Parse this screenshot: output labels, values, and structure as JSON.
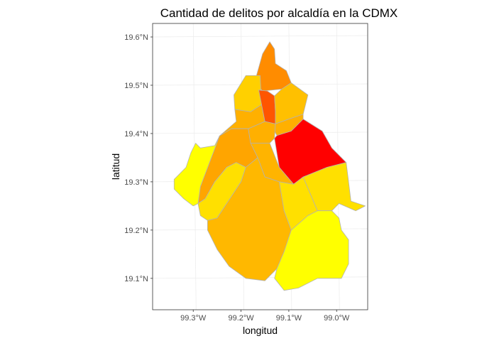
{
  "chart_data": {
    "type": "choropleth map",
    "title": "Cantidad de delitos por alcaldía en la CDMX",
    "xlabel": "longitud",
    "ylabel": "latitud",
    "x_ticks": [
      {
        "value": -99.3,
        "label": "99.3°W"
      },
      {
        "value": -99.2,
        "label": "99.2°W"
      },
      {
        "value": -99.1,
        "label": "99.1°W"
      },
      {
        "value": -99.0,
        "label": "99.0°W"
      }
    ],
    "y_ticks": [
      {
        "value": 19.1,
        "label": "19.1°N"
      },
      {
        "value": 19.2,
        "label": "19.2°N"
      },
      {
        "value": 19.3,
        "label": "19.3°N"
      },
      {
        "value": 19.4,
        "label": "19.4°N"
      },
      {
        "value": 19.5,
        "label": "19.5°N"
      },
      {
        "value": 19.6,
        "label": "19.6°N"
      }
    ],
    "xlim": [
      -99.385,
      -98.935
    ],
    "ylim": [
      19.035,
      19.628
    ],
    "grid": true,
    "legend": "none",
    "border_color": "#b3b3b3",
    "regions": [
      {
        "id": "north-tip",
        "fill": "#ff8c00",
        "coords": [
          [
            -99.17,
            19.512
          ],
          [
            -99.155,
            19.565
          ],
          [
            -99.14,
            19.59
          ],
          [
            -99.13,
            19.575
          ],
          [
            -99.128,
            19.545
          ],
          [
            -99.105,
            19.53
          ],
          [
            -99.095,
            19.505
          ],
          [
            -99.115,
            19.492
          ],
          [
            -99.155,
            19.488
          ],
          [
            -99.163,
            19.497
          ]
        ]
      },
      {
        "id": "north-west",
        "fill": "#ffd000",
        "coords": [
          [
            -99.215,
            19.48
          ],
          [
            -99.19,
            19.52
          ],
          [
            -99.16,
            19.52
          ],
          [
            -99.157,
            19.46
          ],
          [
            -99.18,
            19.445
          ],
          [
            -99.213,
            19.45
          ]
        ]
      },
      {
        "id": "west-central",
        "fill": "#ffb000",
        "coords": [
          [
            -99.213,
            19.45
          ],
          [
            -99.18,
            19.445
          ],
          [
            -99.157,
            19.46
          ],
          [
            -99.15,
            19.425
          ],
          [
            -99.185,
            19.41
          ],
          [
            -99.22,
            19.41
          ],
          [
            -99.245,
            19.395
          ],
          [
            -99.21,
            19.425
          ]
        ]
      },
      {
        "id": "center-north",
        "fill": "#ff5500",
        "coords": [
          [
            -99.157,
            19.46
          ],
          [
            -99.163,
            19.49
          ],
          [
            -99.145,
            19.488
          ],
          [
            -99.13,
            19.478
          ],
          [
            -99.128,
            19.445
          ],
          [
            -99.128,
            19.42
          ],
          [
            -99.15,
            19.425
          ]
        ]
      },
      {
        "id": "north-east",
        "fill": "#ffc000",
        "coords": [
          [
            -99.13,
            19.478
          ],
          [
            -99.115,
            19.492
          ],
          [
            -99.095,
            19.505
          ],
          [
            -99.06,
            19.48
          ],
          [
            -99.07,
            19.44
          ],
          [
            -99.1,
            19.43
          ],
          [
            -99.128,
            19.42
          ],
          [
            -99.128,
            19.445
          ]
        ]
      },
      {
        "id": "east-mid",
        "fill": "#ffb000",
        "coords": [
          [
            -99.128,
            19.42
          ],
          [
            -99.1,
            19.43
          ],
          [
            -99.07,
            19.44
          ],
          [
            -99.07,
            19.43
          ],
          [
            -99.095,
            19.405
          ],
          [
            -99.125,
            19.396
          ],
          [
            -99.13,
            19.405
          ]
        ]
      },
      {
        "id": "iztapalapa",
        "fill": "#ff0000",
        "coords": [
          [
            -99.13,
            19.39
          ],
          [
            -99.125,
            19.396
          ],
          [
            -99.095,
            19.405
          ],
          [
            -99.07,
            19.43
          ],
          [
            -99.03,
            19.405
          ],
          [
            -99.01,
            19.37
          ],
          [
            -98.98,
            19.34
          ],
          [
            -99.02,
            19.33
          ],
          [
            -99.07,
            19.31
          ],
          [
            -99.09,
            19.295
          ],
          [
            -99.12,
            19.33
          ]
        ]
      },
      {
        "id": "central-mid",
        "fill": "#ffb000",
        "coords": [
          [
            -99.185,
            19.41
          ],
          [
            -99.15,
            19.425
          ],
          [
            -99.128,
            19.42
          ],
          [
            -99.13,
            19.39
          ],
          [
            -99.14,
            19.38
          ],
          [
            -99.18,
            19.38
          ]
        ]
      },
      {
        "id": "central-south",
        "fill": "#ffb400",
        "coords": [
          [
            -99.18,
            19.38
          ],
          [
            -99.14,
            19.38
          ],
          [
            -99.12,
            19.33
          ],
          [
            -99.09,
            19.295
          ],
          [
            -99.12,
            19.3
          ],
          [
            -99.15,
            19.31
          ],
          [
            -99.165,
            19.35
          ]
        ]
      },
      {
        "id": "west-strip",
        "fill": "#ffa500",
        "coords": [
          [
            -99.245,
            19.395
          ],
          [
            -99.22,
            19.41
          ],
          [
            -99.185,
            19.41
          ],
          [
            -99.18,
            19.38
          ],
          [
            -99.165,
            19.35
          ],
          [
            -99.19,
            19.33
          ],
          [
            -99.21,
            19.34
          ],
          [
            -99.23,
            19.33
          ],
          [
            -99.255,
            19.3
          ],
          [
            -99.275,
            19.265
          ],
          [
            -99.29,
            19.255
          ],
          [
            -99.285,
            19.29
          ]
        ]
      },
      {
        "id": "far-west",
        "fill": "#ffff00",
        "coords": [
          [
            -99.285,
            19.37
          ],
          [
            -99.255,
            19.375
          ],
          [
            -99.245,
            19.395
          ],
          [
            -99.285,
            19.29
          ],
          [
            -99.29,
            19.255
          ],
          [
            -99.3,
            19.25
          ],
          [
            -99.32,
            19.265
          ],
          [
            -99.34,
            19.285
          ],
          [
            -99.34,
            19.305
          ],
          [
            -99.315,
            19.33
          ],
          [
            -99.305,
            19.36
          ],
          [
            -99.295,
            19.38
          ]
        ]
      },
      {
        "id": "south-west",
        "fill": "#ffe000",
        "coords": [
          [
            -99.275,
            19.265
          ],
          [
            -99.255,
            19.3
          ],
          [
            -99.23,
            19.33
          ],
          [
            -99.21,
            19.34
          ],
          [
            -99.19,
            19.33
          ],
          [
            -99.2,
            19.3
          ],
          [
            -99.22,
            19.27
          ],
          [
            -99.25,
            19.225
          ],
          [
            -99.27,
            19.22
          ],
          [
            -99.285,
            19.23
          ],
          [
            -99.29,
            19.255
          ]
        ]
      },
      {
        "id": "tlalpan",
        "fill": "#ffb800",
        "coords": [
          [
            -99.22,
            19.27
          ],
          [
            -99.2,
            19.3
          ],
          [
            -99.19,
            19.33
          ],
          [
            -99.165,
            19.35
          ],
          [
            -99.15,
            19.31
          ],
          [
            -99.12,
            19.3
          ],
          [
            -99.11,
            19.24
          ],
          [
            -99.095,
            19.2
          ],
          [
            -99.11,
            19.155
          ],
          [
            -99.125,
            19.12
          ],
          [
            -99.15,
            19.095
          ],
          [
            -99.19,
            19.1
          ],
          [
            -99.225,
            19.125
          ],
          [
            -99.25,
            19.16
          ],
          [
            -99.27,
            19.2
          ],
          [
            -99.27,
            19.22
          ],
          [
            -99.25,
            19.225
          ]
        ]
      },
      {
        "id": "coyoacan-xochimilco",
        "fill": "#ffe000",
        "coords": [
          [
            -99.12,
            19.3
          ],
          [
            -99.09,
            19.295
          ],
          [
            -99.07,
            19.31
          ],
          [
            -99.04,
            19.24
          ],
          [
            -99.06,
            19.23
          ],
          [
            -99.095,
            19.2
          ],
          [
            -99.11,
            19.24
          ]
        ]
      },
      {
        "id": "east-yellow",
        "fill": "#ffe000",
        "coords": [
          [
            -99.07,
            19.31
          ],
          [
            -99.02,
            19.33
          ],
          [
            -98.98,
            19.34
          ],
          [
            -98.975,
            19.3
          ],
          [
            -98.97,
            19.26
          ],
          [
            -98.94,
            19.25
          ],
          [
            -98.96,
            19.24
          ],
          [
            -98.995,
            19.255
          ],
          [
            -99.01,
            19.24
          ],
          [
            -99.04,
            19.24
          ]
        ]
      },
      {
        "id": "milpa-alta",
        "fill": "#ffff00",
        "coords": [
          [
            -99.095,
            19.2
          ],
          [
            -99.06,
            19.23
          ],
          [
            -99.04,
            19.24
          ],
          [
            -99.01,
            19.24
          ],
          [
            -98.995,
            19.225
          ],
          [
            -98.99,
            19.2
          ],
          [
            -98.975,
            19.18
          ],
          [
            -98.975,
            19.13
          ],
          [
            -98.99,
            19.1
          ],
          [
            -99.04,
            19.1
          ],
          [
            -99.08,
            19.08
          ],
          [
            -99.11,
            19.075
          ],
          [
            -99.13,
            19.1
          ],
          [
            -99.125,
            19.12
          ],
          [
            -99.11,
            19.155
          ]
        ]
      }
    ]
  }
}
